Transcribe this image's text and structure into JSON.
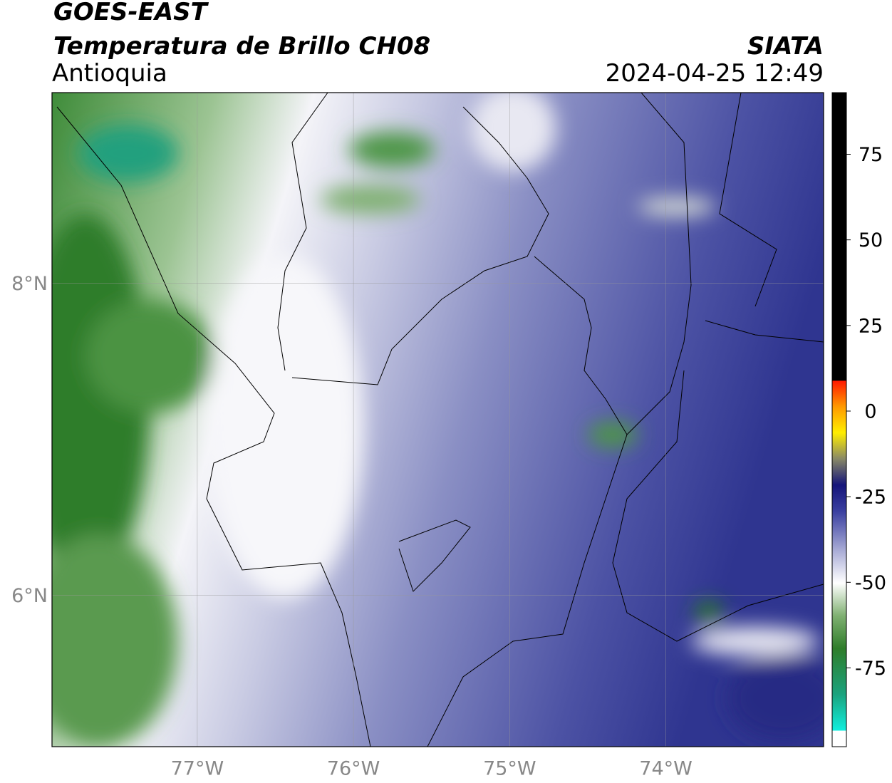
{
  "header": {
    "satellite": "GOES-EAST",
    "product": "Temperatura de Brillo CH08",
    "region": "Antioquia",
    "source": "SIATA",
    "datetime": "2024-04-25 12:49"
  },
  "map": {
    "xlim": [
      -77.93,
      -72.99
    ],
    "ylim": [
      5.03,
      9.22
    ],
    "xticks": [
      {
        "value": -77,
        "label": "77°W"
      },
      {
        "value": -76,
        "label": "76°W"
      },
      {
        "value": -75,
        "label": "75°W"
      },
      {
        "value": -74,
        "label": "74°W"
      }
    ],
    "yticks": [
      {
        "value": 8,
        "label": "8°N"
      },
      {
        "value": 6,
        "label": "6°N"
      }
    ],
    "grid": true
  },
  "colorbar": {
    "lim": [
      -98,
      93
    ],
    "ticks": [
      75,
      50,
      25,
      0,
      -25,
      -50,
      -75
    ]
  }
}
